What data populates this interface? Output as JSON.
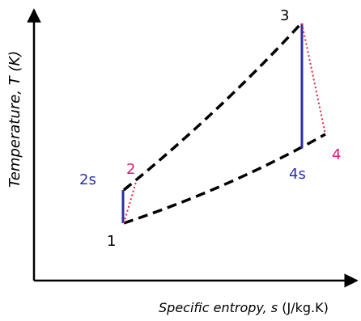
{
  "axes": {
    "y_label": "Temperature, T (K)",
    "x_label_italic": "Specific entropy, s",
    "x_label_units": " (J/kg.K)"
  },
  "points": {
    "p1": "1",
    "p2": "2",
    "p2s": "2s",
    "p3": "3",
    "p4": "4",
    "p4s": "4s"
  },
  "colors": {
    "axis": "#000000",
    "dashed_curve": "#000000",
    "isentropic_line": "#2b2fa6",
    "actual_process": "#e8203a",
    "label_default": "#000000",
    "label_isentropic": "#2b2fa6",
    "label_actual": "#e0187a"
  }
}
